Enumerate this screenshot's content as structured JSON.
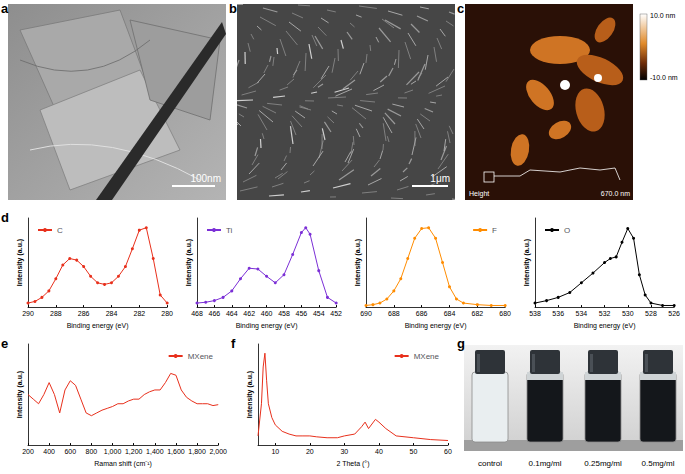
{
  "panel_labels": [
    "a",
    "b",
    "c",
    "d",
    "e",
    "f",
    "g"
  ],
  "images": {
    "a": {
      "scale_bar": "100nm"
    },
    "b": {
      "scale_bar": "1μm"
    },
    "c": {
      "colorbar_top": "10.0 nm",
      "colorbar_bottom": "-10.0 nm",
      "channel": "Height",
      "scan_size": "670.0 nm"
    },
    "g": {
      "vial_labels": [
        "control",
        "0.1mg/ml",
        "0.25mg/ml",
        "0.5mg/ml"
      ]
    }
  },
  "chart_data": [
    {
      "type": "line",
      "x_label": "Binding energy (eV)",
      "y_label": "Intensity (a.u.)",
      "x": [
        290,
        289.5,
        289,
        288.5,
        288,
        287.5,
        287,
        286.5,
        286,
        285.5,
        285,
        284.5,
        284,
        283.5,
        283,
        282.5,
        282,
        281.5,
        281,
        280.5,
        280
      ],
      "series": [
        {
          "name": "C",
          "color": "#e8301c",
          "marker": "circle",
          "values": [
            0.05,
            0.07,
            0.12,
            0.2,
            0.35,
            0.52,
            0.6,
            0.58,
            0.5,
            0.38,
            0.3,
            0.28,
            0.3,
            0.38,
            0.5,
            0.72,
            0.95,
            0.98,
            0.6,
            0.15,
            0.05
          ]
        }
      ],
      "xlim": [
        290,
        280
      ],
      "xticks": [
        290,
        288,
        286,
        284,
        282,
        280
      ],
      "ylim": [
        0,
        1.1
      ],
      "tick_labels": "x",
      "legend": "upper left",
      "grid": false
    },
    {
      "type": "line",
      "x_label": "Binding energy (eV)",
      "y_label": "Intensity (a.u.)",
      "x": [
        468,
        467,
        466,
        465,
        464,
        463,
        462,
        461,
        460,
        459,
        458,
        457,
        456,
        455.5,
        455,
        454,
        453,
        452
      ],
      "series": [
        {
          "name": "Ti",
          "color": "#7b2fd6",
          "marker": "circle",
          "values": [
            0.05,
            0.06,
            0.08,
            0.12,
            0.2,
            0.35,
            0.48,
            0.47,
            0.38,
            0.3,
            0.4,
            0.65,
            0.92,
            0.98,
            0.9,
            0.45,
            0.12,
            0.05
          ]
        }
      ],
      "xlim": [
        468,
        452
      ],
      "xticks": [
        468,
        466,
        464,
        462,
        460,
        458,
        456,
        454,
        452
      ],
      "ylim": [
        0,
        1.1
      ],
      "tick_labels": "x",
      "legend": "upper left",
      "grid": false
    },
    {
      "type": "line",
      "x_label": "Binding energy (eV)",
      "y_label": "Intensity (a.u.)",
      "x": [
        690,
        689.5,
        689,
        688.5,
        688,
        687.5,
        687,
        686.5,
        686,
        685.5,
        685,
        684.5,
        684,
        683.5,
        683,
        682,
        681,
        680
      ],
      "series": [
        {
          "name": "F",
          "color": "#ff8c00",
          "marker": "circle",
          "values": [
            0.02,
            0.03,
            0.05,
            0.1,
            0.2,
            0.35,
            0.6,
            0.85,
            0.97,
            0.98,
            0.85,
            0.55,
            0.25,
            0.1,
            0.05,
            0.03,
            0.02,
            0.02
          ]
        }
      ],
      "xlim": [
        690,
        680
      ],
      "xticks": [
        690,
        688,
        686,
        684,
        682,
        680
      ],
      "ylim": [
        0,
        1.1
      ],
      "tick_labels": "x",
      "legend": "upper right",
      "grid": false
    },
    {
      "type": "line",
      "x_label": "Binding energy (eV)",
      "y_label": "Intensity (a.u.)",
      "x": [
        538,
        537,
        536,
        535,
        534,
        533,
        532,
        531.5,
        531,
        530.5,
        530,
        529.5,
        529,
        528.5,
        528,
        527,
        526
      ],
      "series": [
        {
          "name": "O",
          "color": "#000000",
          "marker": "circle",
          "values": [
            0.05,
            0.08,
            0.12,
            0.18,
            0.3,
            0.42,
            0.55,
            0.6,
            0.62,
            0.8,
            0.97,
            0.85,
            0.4,
            0.15,
            0.05,
            0.02,
            0.02
          ]
        }
      ],
      "xlim": [
        538,
        526
      ],
      "xticks": [
        538,
        536,
        534,
        532,
        530,
        528,
        526
      ],
      "ylim": [
        0,
        1.1
      ],
      "tick_labels": "x",
      "legend": "upper left",
      "grid": false
    },
    {
      "type": "line",
      "x_label": "Raman shift (cm⁻¹)",
      "y_label": "Intensity (a.u.)",
      "x": [
        200,
        250,
        300,
        350,
        400,
        450,
        500,
        550,
        600,
        650,
        700,
        750,
        800,
        850,
        900,
        950,
        1000,
        1050,
        1100,
        1150,
        1200,
        1250,
        1300,
        1350,
        1400,
        1450,
        1500,
        1550,
        1600,
        1650,
        1700,
        1750,
        1800,
        1850,
        1900,
        1950,
        2000
      ],
      "series": [
        {
          "name": "MXene",
          "color": "#e8301c",
          "marker": "none",
          "values": [
            0.55,
            0.5,
            0.45,
            0.55,
            0.68,
            0.55,
            0.35,
            0.6,
            0.7,
            0.65,
            0.5,
            0.35,
            0.32,
            0.35,
            0.38,
            0.4,
            0.42,
            0.45,
            0.45,
            0.48,
            0.5,
            0.5,
            0.55,
            0.58,
            0.6,
            0.6,
            0.68,
            0.78,
            0.76,
            0.6,
            0.52,
            0.48,
            0.45,
            0.45,
            0.45,
            0.43,
            0.44
          ]
        }
      ],
      "xlim": [
        200,
        2000
      ],
      "xticks": [
        200,
        400,
        600,
        800,
        1000,
        1200,
        1400,
        1600,
        1800,
        2000
      ],
      "ylim": [
        0,
        1.1
      ],
      "tick_labels": "x",
      "legend": "upper right",
      "grid": false
    },
    {
      "type": "line",
      "x_label": "2 Theta (°)",
      "y_label": "Intensity (a.u.)",
      "x": [
        5,
        6,
        6.5,
        7,
        7.5,
        8,
        9,
        10,
        12,
        14,
        16,
        18,
        20,
        22,
        25,
        28,
        30,
        33,
        35,
        36,
        37,
        39,
        40,
        42,
        45,
        50,
        55,
        60
      ],
      "series": [
        {
          "name": "MXene",
          "color": "#e8301c",
          "marker": "none",
          "values": [
            0.1,
            0.45,
            0.85,
            1.0,
            0.7,
            0.45,
            0.3,
            0.22,
            0.15,
            0.12,
            0.1,
            0.1,
            0.1,
            0.09,
            0.08,
            0.08,
            0.1,
            0.12,
            0.2,
            0.25,
            0.18,
            0.28,
            0.25,
            0.18,
            0.1,
            0.08,
            0.06,
            0.05
          ]
        }
      ],
      "xlim": [
        5,
        60
      ],
      "xticks": [
        10,
        20,
        30,
        40,
        50,
        60
      ],
      "ylim": [
        0,
        1.1
      ],
      "tick_labels": "x",
      "legend": "upper right",
      "grid": false
    }
  ]
}
